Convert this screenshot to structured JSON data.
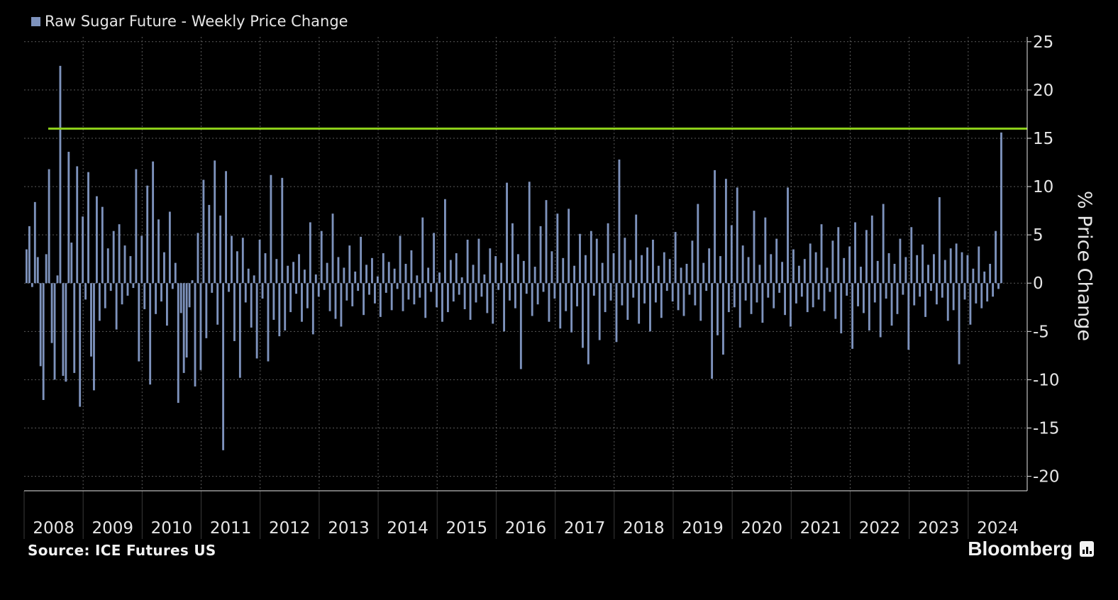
{
  "legend": {
    "label": "Raw Sugar Future - Weekly Price Change",
    "color": "#7e93bd"
  },
  "source": "Source: ICE Futures US",
  "brand": "Bloomberg",
  "colors": {
    "bar": "#7e93bd",
    "threshold": "#8ed21a",
    "grid": "#5a5a5a",
    "axis": "#e6e6e6"
  },
  "chart_data": {
    "type": "bar",
    "title": "",
    "ylabel": "% Price Change",
    "xlabel": "",
    "ylim": [
      -21.5,
      25.5
    ],
    "yticks": [
      25,
      20,
      15,
      10,
      5,
      0,
      -5,
      -10,
      -15,
      -20
    ],
    "xlim": [
      2008.0,
      2025.0
    ],
    "years": [
      "2008",
      "2009",
      "2010",
      "2011",
      "2012",
      "2013",
      "2014",
      "2015",
      "2016",
      "2017",
      "2018",
      "2019",
      "2020",
      "2021",
      "2022",
      "2023",
      "2024"
    ],
    "threshold": 16.0,
    "grid": "dotted",
    "legend_position": "top-left",
    "series": [
      {
        "name": "Raw Sugar Future - Weekly Price Change",
        "note": "weekly % changes; one value per week starting Jan 2008",
        "values": [
          3.5,
          5.9,
          -0.4,
          8.4,
          2.7,
          -8.6,
          -12.1,
          3.0,
          11.8,
          -6.2,
          -10.0,
          0.8,
          22.5,
          -9.6,
          -10.2,
          13.6,
          4.2,
          -9.3,
          12.1,
          -12.8,
          6.9,
          -1.7,
          11.5,
          -7.6,
          -11.1,
          9.0,
          -3.9,
          7.9,
          -2.6,
          3.6,
          -0.8,
          5.4,
          -4.8,
          6.1,
          -2.2,
          3.9,
          -1.3,
          2.8,
          -0.5,
          11.8,
          -8.1,
          4.9,
          -2.7,
          10.1,
          -10.5,
          12.6,
          -3.2,
          6.6,
          -1.9,
          3.2,
          -4.4,
          7.4,
          -0.6,
          2.1,
          -12.4,
          -3.1,
          -9.3,
          -7.7,
          -2.5,
          0.3,
          -10.7,
          5.2,
          -9.0,
          10.7,
          -5.7,
          8.1,
          -1.0,
          12.7,
          -4.3,
          7.0,
          -17.3,
          11.6,
          -0.9,
          4.9,
          -6.0,
          3.3,
          -9.8,
          4.7,
          -2.0,
          1.5,
          -4.6,
          0.8,
          -7.8,
          4.5,
          -1.6,
          3.1,
          -8.1,
          11.2,
          -3.8,
          2.5,
          -5.5,
          10.9,
          -4.9,
          1.8,
          -3.0,
          2.2,
          -1.1,
          3.0,
          -4.0,
          1.4,
          -2.6,
          6.3,
          -5.3,
          0.9,
          -1.4,
          5.4,
          -0.7,
          2.1,
          -2.9,
          7.2,
          -3.7,
          2.7,
          -4.5,
          1.6,
          -1.8,
          3.9,
          -2.4,
          1.2,
          -0.8,
          4.8,
          -3.3,
          1.9,
          -1.2,
          2.6,
          -2.1,
          0.7,
          -3.5,
          3.1,
          -1.0,
          2.2,
          -2.8,
          1.5,
          -0.6,
          4.9,
          -2.9,
          2.0,
          -1.7,
          3.4,
          -2.2,
          0.8,
          -1.5,
          6.8,
          -3.6,
          1.6,
          -0.9,
          5.2,
          -2.5,
          1.1,
          -4.0,
          8.7,
          -3.0,
          2.4,
          -1.9,
          3.1,
          -1.2,
          0.6,
          -2.7,
          4.5,
          -3.8,
          1.9,
          -2.0,
          4.6,
          -1.4,
          0.9,
          -3.1,
          3.6,
          -4.2,
          2.8,
          -0.7,
          2.1,
          -5.0,
          10.4,
          -1.8,
          6.2,
          -2.6,
          3.0,
          -8.9,
          2.3,
          -1.1,
          10.5,
          -3.4,
          1.7,
          -2.2,
          5.9,
          -0.9,
          8.6,
          -4.0,
          3.3,
          -1.6,
          7.2,
          -4.7,
          2.6,
          -2.9,
          7.7,
          -5.1,
          1.8,
          -2.4,
          5.1,
          -6.7,
          2.9,
          -8.4,
          5.4,
          -1.3,
          4.6,
          -5.9,
          2.1,
          -3.0,
          6.2,
          -1.8,
          3.1,
          -6.1,
          12.8,
          -2.3,
          4.7,
          -3.8,
          2.4,
          -1.5,
          7.1,
          -4.2,
          2.9,
          -2.1,
          3.7,
          -5.0,
          4.5,
          -2.0,
          1.8,
          -3.6,
          3.2,
          -0.8,
          2.5,
          -1.9,
          5.3,
          -2.8,
          1.6,
          -3.4,
          2.0,
          -1.2,
          4.4,
          -2.3,
          8.2,
          -3.9,
          2.1,
          -0.8,
          3.6,
          -9.9,
          11.7,
          -5.4,
          2.8,
          -7.4,
          10.8,
          -3.0,
          6.0,
          -2.5,
          9.9,
          -4.6,
          3.9,
          -1.8,
          2.7,
          -3.2,
          7.5,
          -2.0,
          1.9,
          -4.1,
          6.8,
          -1.5,
          3.0,
          -2.6,
          4.6,
          -1.0,
          2.2,
          -3.3,
          9.9,
          -4.5,
          3.5,
          -2.1,
          1.8,
          -1.4,
          2.5,
          -3.0,
          4.1,
          -2.5,
          3.2,
          -1.7,
          6.1,
          -2.9,
          1.6,
          -0.9,
          4.4,
          -3.7,
          5.8,
          -5.2,
          2.6,
          -1.3,
          3.8,
          -6.8,
          6.3,
          -2.4,
          1.7,
          -3.1,
          5.5,
          -4.9,
          7.0,
          -2.0,
          2.3,
          -5.6,
          8.2,
          -1.6,
          3.1,
          -4.4,
          2.0,
          -3.2,
          4.6,
          -1.2,
          2.7,
          -6.9,
          5.8,
          -2.3,
          2.9,
          -1.4,
          4.0,
          -3.5,
          1.9,
          -0.8,
          3.0,
          -2.2,
          8.9,
          -1.5,
          2.4,
          -3.9,
          3.6,
          -2.8,
          4.1,
          -8.4,
          3.2,
          -1.7,
          2.9,
          -4.3,
          1.5,
          -2.1,
          3.8,
          -2.6,
          1.2,
          -1.9,
          2.0,
          -1.4,
          5.4,
          -0.6,
          15.6
        ]
      }
    ]
  }
}
